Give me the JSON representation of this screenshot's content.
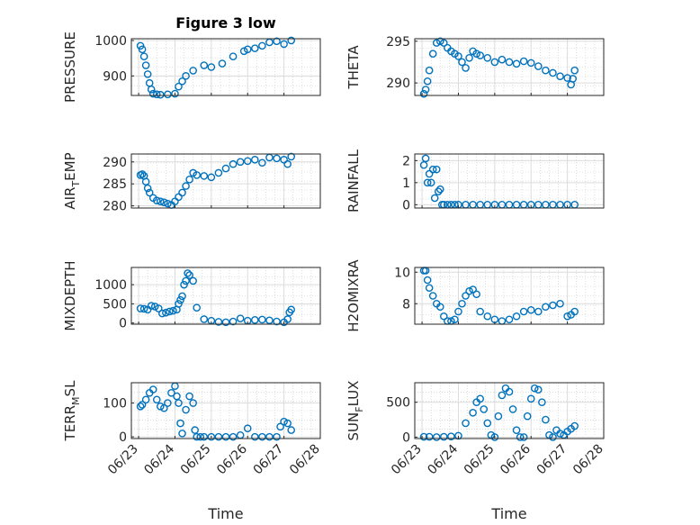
{
  "figure_title": "Figure 3 low",
  "colors": {
    "marker": "#0072BD",
    "axis": "#262626",
    "grid": "#dcdcdc",
    "minor_grid": "#c8c8c8"
  },
  "chart_data": [
    {
      "id": "pressure",
      "type": "scatter",
      "ylabel": "PRESSURE",
      "xlabel": "",
      "ylim": [
        845,
        1005
      ],
      "yticks": [
        900,
        1000
      ],
      "x": [
        "06/23",
        "06/23",
        "06/23",
        "06/23",
        "06/23",
        "06/23",
        "06/23",
        "06/23",
        "06/23",
        "06/23",
        "06/23",
        "06/24",
        "06/24",
        "06/24",
        "06/24",
        "06/24",
        "06/24",
        "06/25",
        "06/25",
        "06/25",
        "06/25",
        "06/26",
        "06/26",
        "06/26",
        "06/26",
        "06/26",
        "06/27",
        "06/27"
      ],
      "xd": [
        0.05,
        0.1,
        0.15,
        0.2,
        0.25,
        0.3,
        0.35,
        0.4,
        0.5,
        0.6,
        0.8,
        1.0,
        1.1,
        1.2,
        1.3,
        1.5,
        1.8,
        2.0,
        2.3,
        2.6,
        2.9,
        3.0,
        3.2,
        3.4,
        3.6,
        3.8,
        4.0,
        4.2
      ],
      "y": [
        985,
        975,
        955,
        930,
        905,
        880,
        862,
        850,
        848,
        847,
        848,
        850,
        870,
        885,
        900,
        915,
        930,
        925,
        935,
        955,
        970,
        975,
        978,
        985,
        995,
        998,
        990,
        1000
      ]
    },
    {
      "id": "theta",
      "type": "scatter",
      "ylabel": "THETA",
      "xlabel": "",
      "ylim": [
        288.5,
        295.3
      ],
      "yticks": [
        290,
        295
      ],
      "xd": [
        0.05,
        0.1,
        0.15,
        0.2,
        0.3,
        0.4,
        0.5,
        0.6,
        0.7,
        0.8,
        0.9,
        1.0,
        1.1,
        1.2,
        1.3,
        1.4,
        1.5,
        1.6,
        1.8,
        2.0,
        2.2,
        2.4,
        2.6,
        2.8,
        3.0,
        3.2,
        3.4,
        3.6,
        3.8,
        4.0,
        4.1,
        4.15,
        4.2
      ],
      "y": [
        288.7,
        289.2,
        290.2,
        291.5,
        293.5,
        294.8,
        295.0,
        294.8,
        294.2,
        293.8,
        293.5,
        293.2,
        292.5,
        291.8,
        293.0,
        293.8,
        293.5,
        293.3,
        293.0,
        292.5,
        292.8,
        292.5,
        292.3,
        292.6,
        292.4,
        292.0,
        291.5,
        291.2,
        290.8,
        290.6,
        289.8,
        290.5,
        291.5
      ]
    },
    {
      "id": "air_temp",
      "type": "scatter",
      "ylabel": "AIR",
      "ylabel_sub": "T",
      "ylabel_rest": "EMP",
      "xlabel": "",
      "ylim": [
        279.5,
        291.8
      ],
      "yticks": [
        280,
        285,
        290
      ],
      "xd": [
        0.05,
        0.1,
        0.15,
        0.2,
        0.25,
        0.3,
        0.4,
        0.5,
        0.6,
        0.7,
        0.8,
        0.9,
        1.0,
        1.1,
        1.2,
        1.3,
        1.4,
        1.5,
        1.6,
        1.8,
        2.0,
        2.2,
        2.4,
        2.6,
        2.8,
        3.0,
        3.2,
        3.4,
        3.6,
        3.8,
        4.0,
        4.1,
        4.2
      ],
      "y": [
        287,
        287.2,
        286.8,
        285.5,
        284,
        283,
        281.8,
        281.2,
        281,
        280.8,
        280.5,
        280.2,
        281,
        282,
        283,
        284.5,
        286,
        287.5,
        287,
        286.8,
        286.5,
        287.5,
        288.5,
        289.5,
        290,
        290.2,
        290.5,
        289.8,
        291,
        290.8,
        290.5,
        289.5,
        291.2
      ]
    },
    {
      "id": "rainfall",
      "type": "scatter",
      "ylabel": "RAINFALL",
      "xlabel": "",
      "ylim": [
        -0.15,
        2.3
      ],
      "yticks": [
        0,
        1,
        2
      ],
      "xd": [
        0.05,
        0.1,
        0.15,
        0.2,
        0.25,
        0.3,
        0.35,
        0.4,
        0.45,
        0.5,
        0.55,
        0.6,
        0.7,
        0.8,
        0.9,
        1.0,
        1.2,
        1.4,
        1.6,
        1.8,
        2.0,
        2.2,
        2.4,
        2.6,
        2.8,
        3.0,
        3.2,
        3.4,
        3.6,
        3.8,
        4.0,
        4.2
      ],
      "y": [
        1.8,
        2.1,
        1.0,
        1.4,
        1.0,
        1.6,
        0.3,
        1.6,
        0.6,
        0.7,
        0,
        0,
        0,
        0,
        0,
        0,
        0,
        0,
        0,
        0,
        0,
        0,
        0,
        0,
        0,
        0,
        0,
        0,
        0,
        0,
        0,
        0
      ]
    },
    {
      "id": "mixdepth",
      "type": "scatter",
      "ylabel": "MIXDEPTH",
      "xlabel": "",
      "ylim": [
        -30,
        1450
      ],
      "yticks": [
        0,
        500,
        1000
      ],
      "xd": [
        0.05,
        0.15,
        0.25,
        0.35,
        0.45,
        0.55,
        0.65,
        0.75,
        0.85,
        0.95,
        1.05,
        1.1,
        1.15,
        1.2,
        1.25,
        1.3,
        1.35,
        1.4,
        1.5,
        1.6,
        1.8,
        2.0,
        2.2,
        2.4,
        2.6,
        2.8,
        3.0,
        3.2,
        3.4,
        3.6,
        3.8,
        4.0,
        4.1,
        4.15,
        4.2
      ],
      "y": [
        380,
        370,
        350,
        450,
        430,
        380,
        250,
        270,
        300,
        320,
        350,
        500,
        600,
        700,
        1000,
        1100,
        1300,
        1250,
        1100,
        400,
        100,
        60,
        30,
        20,
        40,
        120,
        60,
        80,
        90,
        70,
        40,
        20,
        100,
        280,
        350
      ]
    },
    {
      "id": "h2omixra",
      "type": "scatter",
      "ylabel": "H2OMIXRA",
      "xlabel": "",
      "ylim": [
        6.7,
        10.3
      ],
      "yticks": [
        8,
        10
      ],
      "xd": [
        0.05,
        0.1,
        0.15,
        0.2,
        0.3,
        0.4,
        0.5,
        0.6,
        0.7,
        0.8,
        0.9,
        1.0,
        1.1,
        1.2,
        1.3,
        1.4,
        1.5,
        1.6,
        1.8,
        2.0,
        2.2,
        2.4,
        2.6,
        2.8,
        3.0,
        3.2,
        3.4,
        3.6,
        3.8,
        4.0,
        4.1,
        4.2
      ],
      "y": [
        10.1,
        10.1,
        9.5,
        9.0,
        8.5,
        8.0,
        7.8,
        7.2,
        6.9,
        6.9,
        7.0,
        7.5,
        8.0,
        8.5,
        8.8,
        8.9,
        8.6,
        7.5,
        7.2,
        7.0,
        6.9,
        7.0,
        7.2,
        7.5,
        7.6,
        7.5,
        7.8,
        7.9,
        8.0,
        7.2,
        7.3,
        7.5
      ]
    },
    {
      "id": "terr_msl",
      "type": "scatter",
      "ylabel": "TERR",
      "ylabel_sub": "M",
      "ylabel_rest": "SL",
      "xlabel": "Time",
      "ylim": [
        -5,
        160
      ],
      "yticks": [
        0,
        100
      ],
      "xtick_labels": [
        "06/23",
        "06/24",
        "06/25",
        "06/26",
        "06/27",
        "06/28"
      ],
      "xd": [
        0.05,
        0.1,
        0.2,
        0.3,
        0.4,
        0.5,
        0.6,
        0.7,
        0.8,
        0.9,
        1.0,
        1.05,
        1.1,
        1.15,
        1.2,
        1.3,
        1.4,
        1.5,
        1.55,
        1.6,
        1.7,
        1.8,
        2.0,
        2.2,
        2.4,
        2.6,
        2.8,
        3.0,
        3.2,
        3.4,
        3.6,
        3.8,
        3.9,
        4.0,
        4.1,
        4.2
      ],
      "y": [
        90,
        95,
        110,
        130,
        140,
        110,
        90,
        85,
        100,
        130,
        150,
        120,
        100,
        40,
        10,
        80,
        120,
        100,
        20,
        0,
        0,
        0,
        0,
        0,
        0,
        0,
        5,
        25,
        0,
        0,
        0,
        0,
        30,
        45,
        40,
        20
      ]
    },
    {
      "id": "sunflux",
      "type": "scatter",
      "ylabel": "SUN",
      "ylabel_sub": "F",
      "ylabel_rest": "LUX",
      "xlabel": "Time",
      "ylim": [
        -20,
        780
      ],
      "yticks": [
        0,
        500
      ],
      "xtick_labels": [
        "06/23",
        "06/24",
        "06/25",
        "06/26",
        "06/27",
        "06/28"
      ],
      "xd": [
        0.05,
        0.2,
        0.4,
        0.6,
        0.8,
        1.0,
        1.2,
        1.4,
        1.5,
        1.6,
        1.7,
        1.8,
        1.9,
        2.0,
        2.1,
        2.2,
        2.3,
        2.4,
        2.5,
        2.6,
        2.7,
        2.8,
        2.9,
        3.0,
        3.1,
        3.2,
        3.3,
        3.4,
        3.5,
        3.6,
        3.7,
        3.8,
        3.9,
        4.0,
        4.1,
        4.2
      ],
      "y": [
        5,
        5,
        0,
        5,
        10,
        20,
        200,
        350,
        500,
        550,
        400,
        200,
        30,
        0,
        300,
        600,
        700,
        650,
        400,
        100,
        0,
        0,
        300,
        550,
        700,
        680,
        500,
        250,
        30,
        0,
        100,
        50,
        30,
        80,
        120,
        160
      ]
    }
  ]
}
